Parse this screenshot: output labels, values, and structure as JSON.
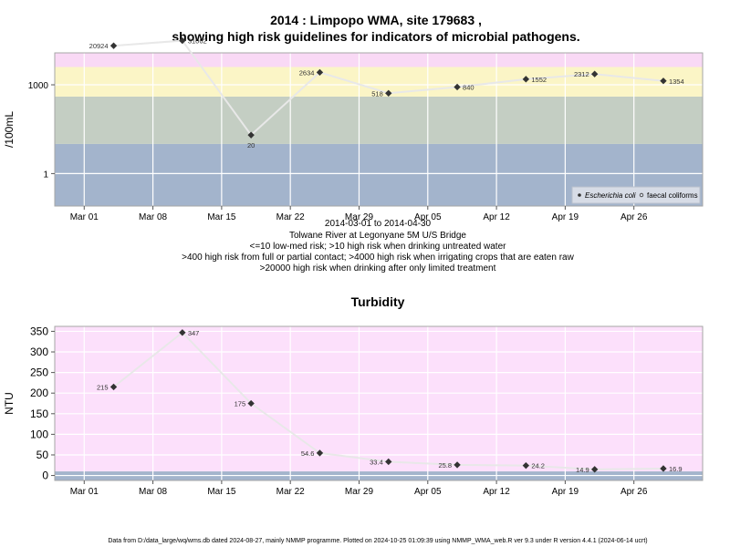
{
  "title_line1": "2014 : Limpopo WMA, site 179683 ,",
  "title_line2": "showing high risk guidelines for indicators of microbial pathogens.",
  "x_ticks": [
    "Mar 01",
    "Mar 08",
    "Mar 15",
    "Mar 22",
    "Mar 29",
    "Apr 05",
    "Apr 12",
    "Apr 19",
    "Apr 26"
  ],
  "notes": [
    "2014-03-01 to 2014-04-30",
    "Tolwane River at Legonyane 5M U/S Bridge",
    "<=10 low-med risk; >10 high risk when drinking untreated water",
    ">400 high risk from full or partial contact; >4000 high risk when irrigating crops that are eaten raw",
    ">20000 high risk when drinking after only limited treatment"
  ],
  "footer": "Data from D:/data_large/wq/wms.db dated 2024-08-27, mainly NMMP programme. Plotted on 2024-10-25 01:09:39 using NMMP_WMA_web.R ver 9.3 under R version 4.4.1 (2024-06-14 ucrt)",
  "colors": {
    "band_blue": "#a3b4cc",
    "band_grey": "#c4cec3",
    "band_yellow": "#fbf5c6",
    "band_pink_light": "#f9d9f5",
    "band_pink": "#fce0fb",
    "band_red": "#f6b1c0",
    "line": "#e8e8e8",
    "marker": "#333333"
  },
  "chart_data": [
    {
      "type": "line",
      "title": "",
      "ylabel": "/100mL",
      "y_scale": "log10",
      "ylim": [
        0.08,
        12000
      ],
      "y_ticks": [
        1,
        1000
      ],
      "y_tick_labels": [
        "1",
        "1000"
      ],
      "xlim": [
        "2014-02-26",
        "2014-05-03"
      ],
      "x_tick_dates": [
        "2014-03-01",
        "2014-03-08",
        "2014-03-15",
        "2014-03-22",
        "2014-03-29",
        "2014-04-05",
        "2014-04-12",
        "2014-04-19",
        "2014-04-26"
      ],
      "risk_bands": [
        10,
        400,
        4000,
        20000
      ],
      "legend": [
        "Escherichia coli",
        "faecal coliforms"
      ],
      "legend_position": "bottom-right",
      "series": [
        {
          "name": "Escherichia coli",
          "x": [
            "2014-03-04",
            "2014-03-11",
            "2014-03-18",
            "2014-03-25",
            "2014-04-01",
            "2014-04-08",
            "2014-04-15",
            "2014-04-22",
            "2014-04-29"
          ],
          "values": [
            20924,
            31062,
            20,
            2634,
            518,
            840,
            1552,
            2312,
            1354
          ],
          "labels": [
            "20924",
            "31062",
            "20",
            "2634",
            "518",
            "840",
            "1552",
            "2312",
            "1354"
          ],
          "label_side": [
            "left",
            "right",
            "below",
            "left",
            "left",
            "right",
            "right",
            "left",
            "right"
          ]
        }
      ]
    },
    {
      "type": "line",
      "title": "Turbidity",
      "ylabel": "NTU",
      "ylim": [
        -12,
        362
      ],
      "y_ticks": [
        0,
        50,
        100,
        150,
        200,
        250,
        300,
        350
      ],
      "y_tick_labels": [
        "0",
        "50",
        "100",
        "150",
        "200",
        "250",
        "300",
        "350"
      ],
      "xlim": [
        "2014-02-26",
        "2014-05-03"
      ],
      "x_tick_dates": [
        "2014-03-01",
        "2014-03-08",
        "2014-03-15",
        "2014-03-22",
        "2014-03-29",
        "2014-04-05",
        "2014-04-12",
        "2014-04-19",
        "2014-04-26"
      ],
      "risk_bands": [
        10
      ],
      "series": [
        {
          "name": "",
          "x": [
            "2014-03-04",
            "2014-03-11",
            "2014-03-18",
            "2014-03-25",
            "2014-04-01",
            "2014-04-08",
            "2014-04-15",
            "2014-04-22",
            "2014-04-29"
          ],
          "values": [
            215,
            347,
            175,
            54.6,
            33.4,
            25.8,
            24.2,
            14.9,
            16.9
          ],
          "labels": [
            "215",
            "347",
            "175",
            "54.6",
            "33.4",
            "25.8",
            "24.2",
            "14.9",
            "16.9"
          ],
          "label_side": [
            "left",
            "right",
            "left",
            "left",
            "left",
            "left",
            "right",
            "left",
            "right"
          ]
        }
      ]
    }
  ]
}
